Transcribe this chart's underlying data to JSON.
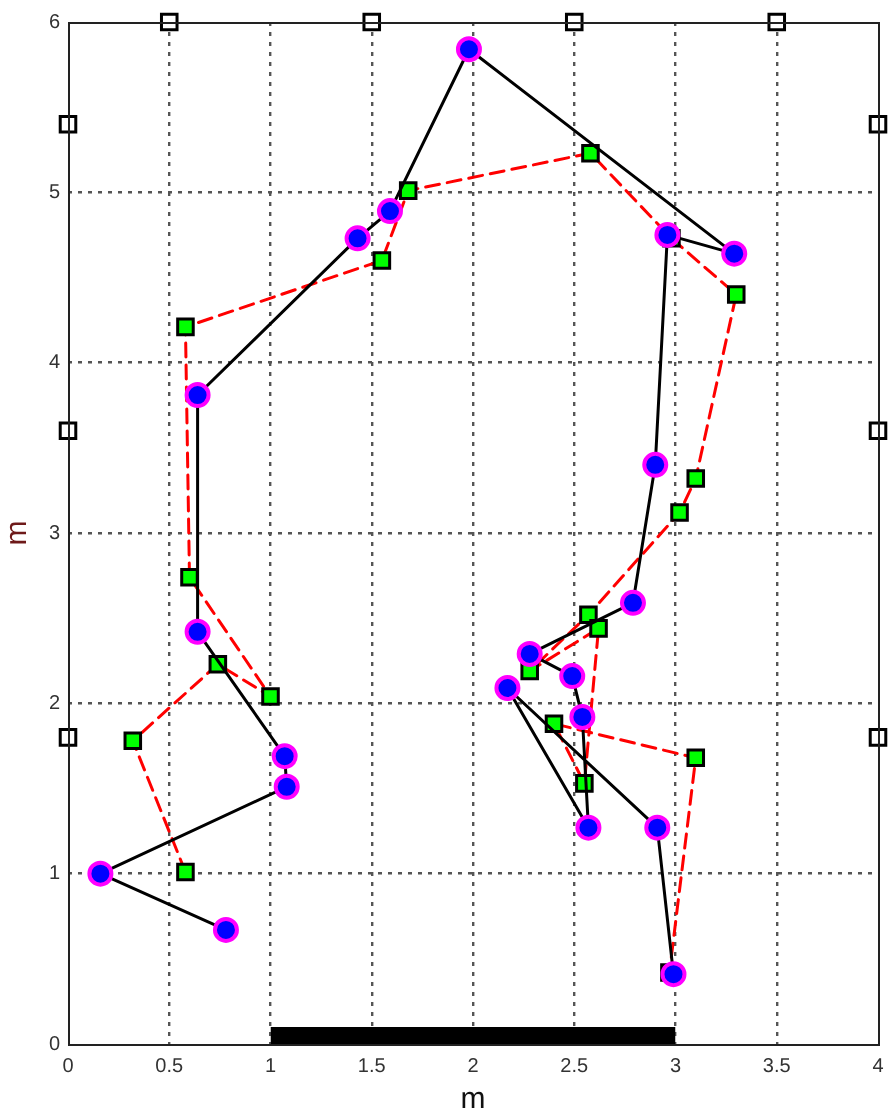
{
  "chart_data": {
    "type": "line",
    "xlabel": "m",
    "ylabel": "m",
    "xlim": [
      0,
      4
    ],
    "ylim": [
      0,
      6
    ],
    "xticks": [
      0,
      0.5,
      1,
      1.5,
      2,
      2.5,
      3,
      3.5,
      4
    ],
    "yticks": [
      0,
      1,
      2,
      3,
      4,
      5,
      6
    ],
    "grid": true,
    "series": [
      {
        "type": "area",
        "color": "#000000",
        "x": [
          1,
          3
        ],
        "values": [
          0.1,
          0.1
        ]
      },
      {
        "color": "#000000",
        "colors": [
          "#0000ff",
          "#0000ff",
          "#0000ff",
          "#0000ff",
          "#0000ff",
          "#0000ff",
          "#0000ff",
          "#0000ff",
          "#0000ff",
          "#0000ff",
          "#0000ff",
          "#0000ff",
          "#0000ff",
          "#0000ff",
          "#0000ff",
          "#0000ff",
          "#0000ff",
          "#0000ff",
          "#0000ff",
          "#0000ff"
        ],
        "marker": "circle",
        "line_style": "solid",
        "x": [
          0.78,
          0.16,
          1.08,
          1.07,
          0.64,
          0.64,
          1.43,
          1.59,
          1.98,
          3.29,
          2.96,
          2.9,
          2.79,
          2.28,
          2.49,
          2.54,
          2.57,
          2.17,
          2.91,
          2.99
        ],
        "values": [
          0.67,
          1.0,
          1.51,
          1.69,
          2.42,
          3.81,
          4.73,
          4.89,
          5.84,
          4.64,
          4.75,
          3.4,
          2.59,
          2.29,
          2.16,
          1.92,
          1.27,
          2.09,
          1.27,
          0.41
        ]
      },
      {
        "color": "#ff0000",
        "colors": [
          "#00ff00",
          "#00ff00",
          "#00ff00",
          "#00ff00",
          "#00ff00",
          "#00ff00",
          "#00ff00",
          "#00ff00",
          "#00ff00",
          "#00ff00",
          "#00ff00",
          "#00ff00",
          "#00ff00",
          "#00ff00",
          "#00ff00",
          "#00ff00",
          "#00ff00",
          "#00ff00",
          "#00ff00",
          "#00ff00"
        ],
        "marker": "square",
        "line_style": "dashed",
        "x": [
          0.58,
          0.32,
          0.74,
          1.0,
          0.6,
          0.58,
          1.55,
          1.68,
          2.58,
          2.98,
          3.3,
          3.1,
          3.02,
          2.57,
          2.28,
          2.62,
          2.55,
          2.4,
          3.1,
          2.97
        ],
        "values": [
          1.01,
          1.78,
          2.23,
          2.04,
          2.74,
          4.21,
          4.6,
          5.01,
          5.23,
          4.73,
          4.4,
          3.32,
          3.12,
          2.52,
          2.19,
          2.44,
          1.53,
          1.88,
          1.68,
          0.42
        ]
      },
      {
        "type": "scatter",
        "color": "#ffffff",
        "marker": "square",
        "x": [
          0.5,
          1.5,
          2.5,
          3.5,
          0,
          0,
          0,
          4,
          4,
          4
        ],
        "values": [
          6,
          6,
          6,
          6,
          5.4,
          3.6,
          1.8,
          5.4,
          3.6,
          1.8
        ]
      }
    ]
  }
}
